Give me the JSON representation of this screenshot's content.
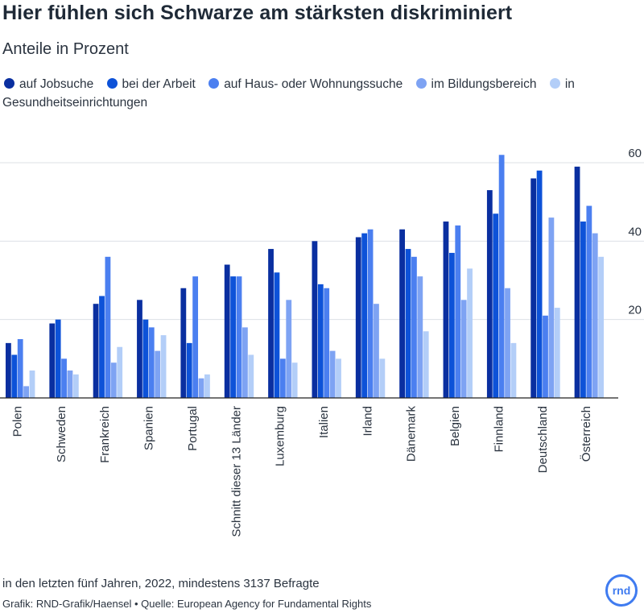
{
  "title": "Hier fühlen sich Schwarze am stärksten diskriminiert",
  "subtitle": "Anteile in Prozent",
  "note": "in den letzten fünf Jahren, 2022, mindestens 3137 Befragte",
  "credits": "Grafik: RND-Grafik/Haensel • Quelle: European Agency for Fundamental Rights",
  "logo_text": "rnd",
  "colors": {
    "series": [
      "#0a2fa0",
      "#0d52d8",
      "#4b7ff0",
      "#7ea3f3",
      "#b3cef8"
    ],
    "grid": "#dde0e6",
    "axis": "#222222",
    "text": "#2b3440"
  },
  "chart_data": {
    "type": "bar",
    "title": "Hier fühlen sich Schwarze am stärksten diskriminiert",
    "subtitle": "Anteile in Prozent",
    "categories": [
      "Polen",
      "Schweden",
      "Frankreich",
      "Spanien",
      "Portugal",
      "Schnitt dieser 13 Länder",
      "Luxemburg",
      "Italien",
      "Irland",
      "Dänemark",
      "Belgien",
      "Finnland",
      "Deutschland",
      "Österreich"
    ],
    "series": [
      {
        "name": "auf Jobsuche",
        "values": [
          14,
          19,
          24,
          25,
          28,
          34,
          38,
          40,
          41,
          43,
          45,
          53,
          56,
          59
        ]
      },
      {
        "name": "bei der Arbeit",
        "values": [
          11,
          20,
          26,
          20,
          14,
          31,
          32,
          29,
          42,
          38,
          37,
          47,
          58,
          45
        ]
      },
      {
        "name": "auf Haus- oder Wohnungssuche",
        "values": [
          15,
          10,
          36,
          18,
          31,
          31,
          10,
          28,
          43,
          36,
          44,
          62,
          21,
          49
        ]
      },
      {
        "name": "im Bildungsbereich",
        "values": [
          3,
          7,
          9,
          12,
          5,
          18,
          25,
          12,
          24,
          31,
          25,
          28,
          46,
          42
        ]
      },
      {
        "name": "in Gesundheitseinrichtungen",
        "values": [
          7,
          6,
          13,
          16,
          6,
          11,
          9,
          10,
          10,
          17,
          33,
          14,
          23,
          36
        ]
      }
    ],
    "ylim": [
      0,
      60
    ],
    "yticks": [
      20,
      40,
      60
    ],
    "y_axis_side": "right",
    "grid": true,
    "legend_position": "top"
  }
}
